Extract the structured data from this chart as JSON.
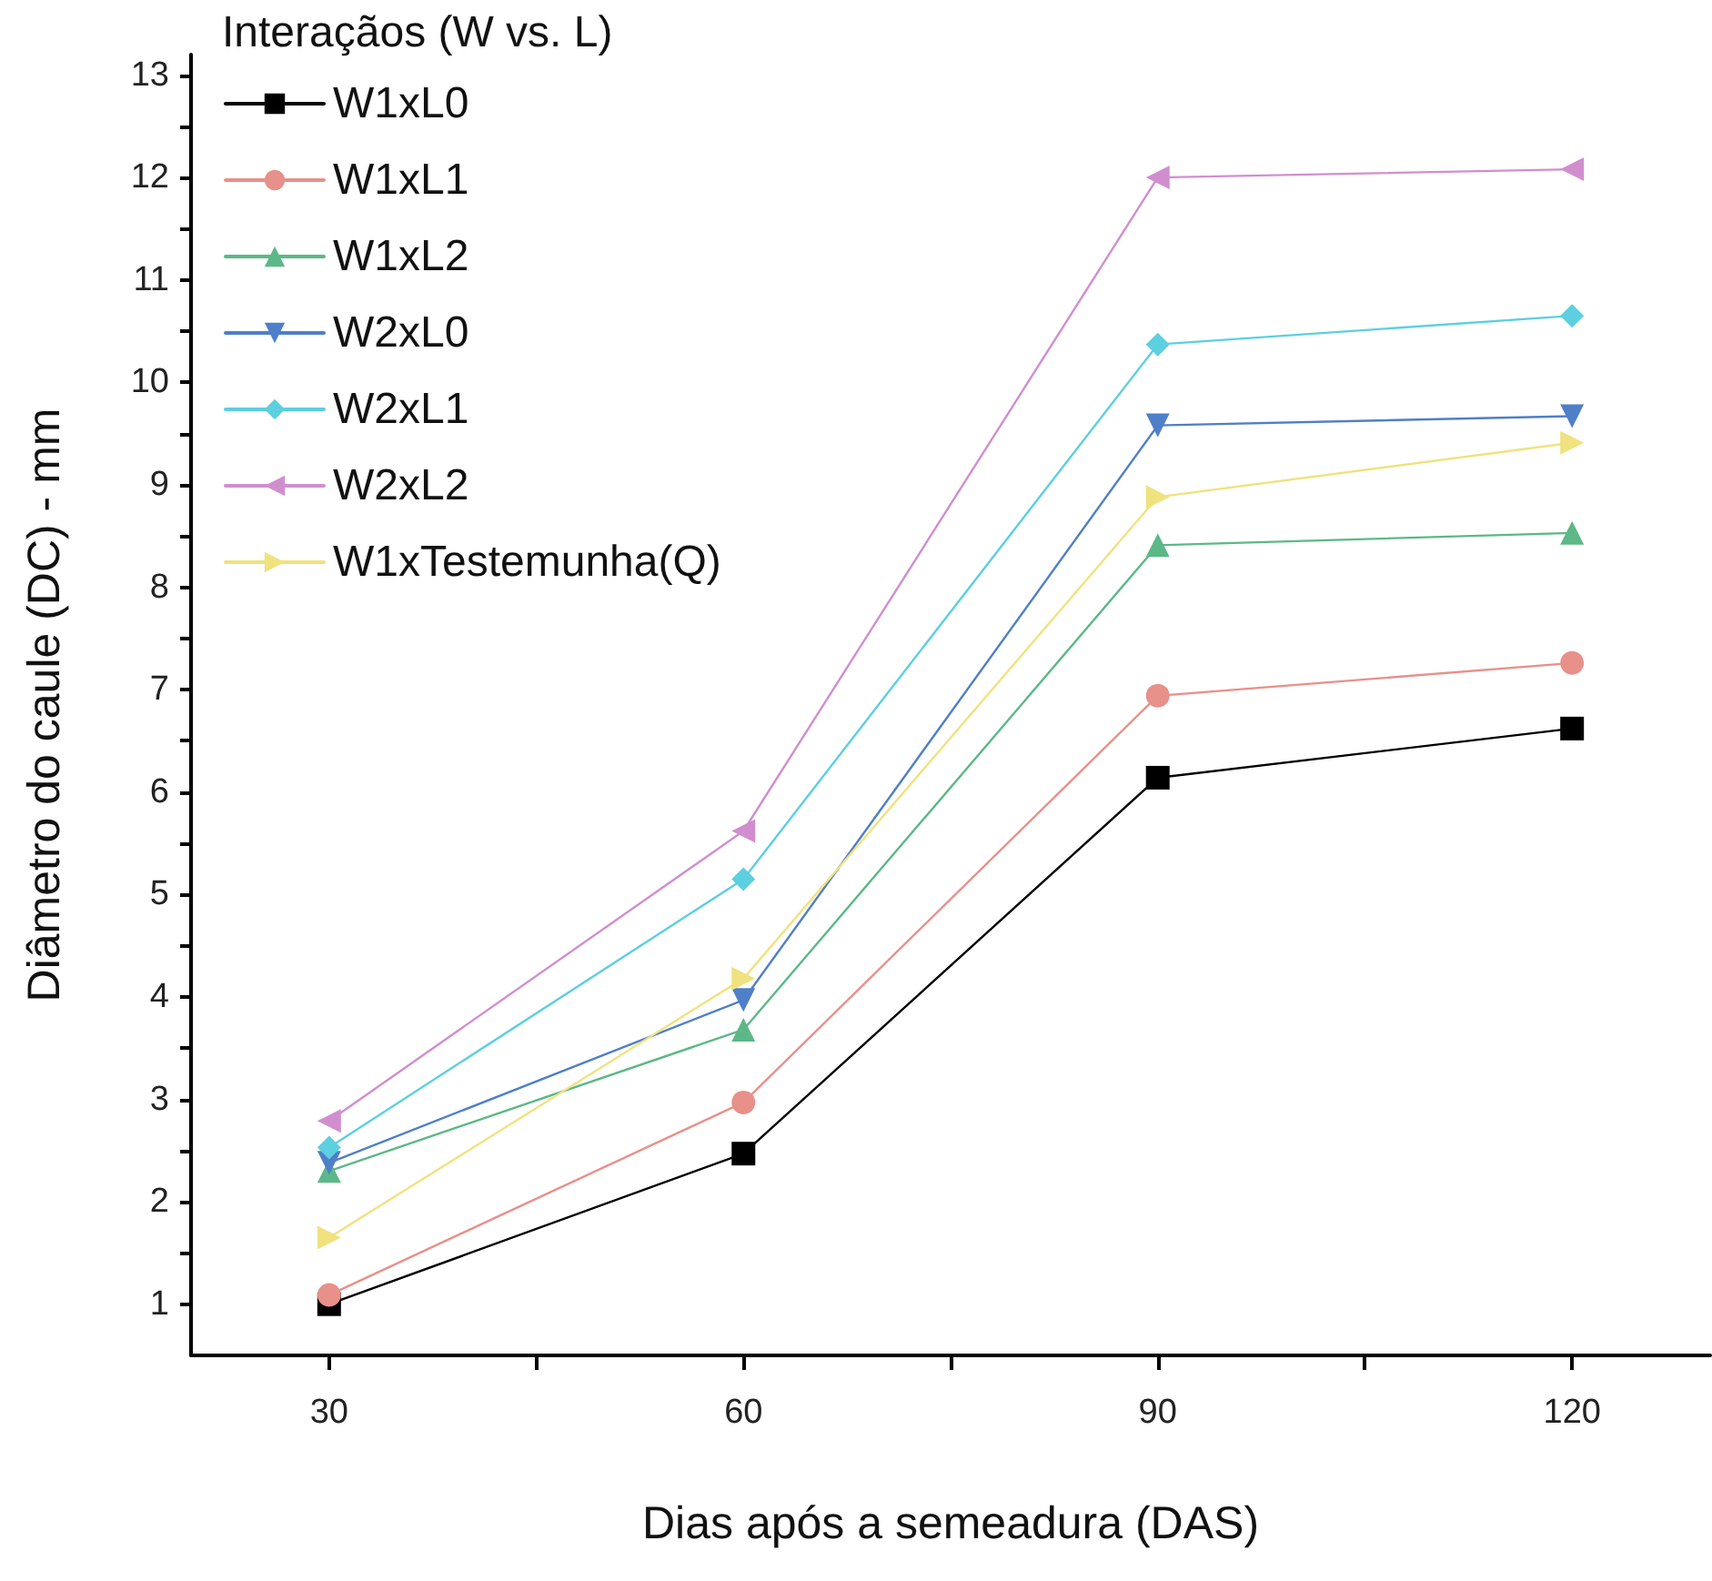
{
  "chart_data": {
    "type": "line",
    "xlabel": "Dias após a semeadura (DAS)",
    "ylabel": "Diâmetro do caule (DC) - mm",
    "legend_title": "Interaçãos (W vs. L)",
    "x": [
      30,
      60,
      90,
      120
    ],
    "series": [
      {
        "name": "W1xL0",
        "color": "#000000",
        "marker": "square",
        "values": [
          1.0,
          2.47,
          6.14,
          6.62
        ]
      },
      {
        "name": "W1xL1",
        "color": "#e8908a",
        "marker": "circle",
        "values": [
          1.09,
          2.97,
          6.94,
          7.26
        ]
      },
      {
        "name": "W1xL2",
        "color": "#5cb886",
        "marker": "triangle",
        "values": [
          2.3,
          3.68,
          8.41,
          8.53
        ]
      },
      {
        "name": "W2xL0",
        "color": "#4f7fc8",
        "marker": "triangle-down",
        "values": [
          2.38,
          3.97,
          9.58,
          9.67
        ]
      },
      {
        "name": "W2xL1",
        "color": "#5ccfe0",
        "marker": "diamond",
        "values": [
          2.53,
          5.15,
          10.37,
          10.65
        ]
      },
      {
        "name": "W2xL2",
        "color": "#d18ecf",
        "marker": "triangle-left",
        "values": [
          2.79,
          5.62,
          12.0,
          12.08
        ]
      },
      {
        "name": "W1xTestemunha(Q)",
        "color": "#f0e27e",
        "marker": "triangle-right",
        "values": [
          1.65,
          4.18,
          8.88,
          9.41
        ]
      }
    ],
    "xlim": [
      20,
      130
    ],
    "xticks": [
      30,
      {
        "value": 45,
        "label": null
      },
      60,
      {
        "value": 75,
        "label": null
      },
      90,
      {
        "value": 105,
        "label": null
      },
      120
    ],
    "ylim": [
      0.5,
      13.2
    ],
    "yticks": [
      1,
      {
        "value": 1.5,
        "label": null
      },
      2,
      {
        "value": 2.5,
        "label": null
      },
      3,
      {
        "value": 3.5,
        "label": null
      },
      4,
      {
        "value": 4.5,
        "label": null
      },
      5,
      {
        "value": 5.5,
        "label": null
      },
      6,
      {
        "value": 6.5,
        "label": null
      },
      7,
      {
        "value": 7.5,
        "label": null
      },
      8,
      {
        "value": 8.5,
        "label": null
      },
      9,
      {
        "value": 9.5,
        "label": null
      },
      10,
      {
        "value": 10.5,
        "label": null
      },
      11,
      {
        "value": 11.5,
        "label": null
      },
      12,
      {
        "value": 12.5,
        "label": null
      },
      13
    ],
    "grid": false,
    "legend": "top left",
    "line_style": "solid"
  }
}
